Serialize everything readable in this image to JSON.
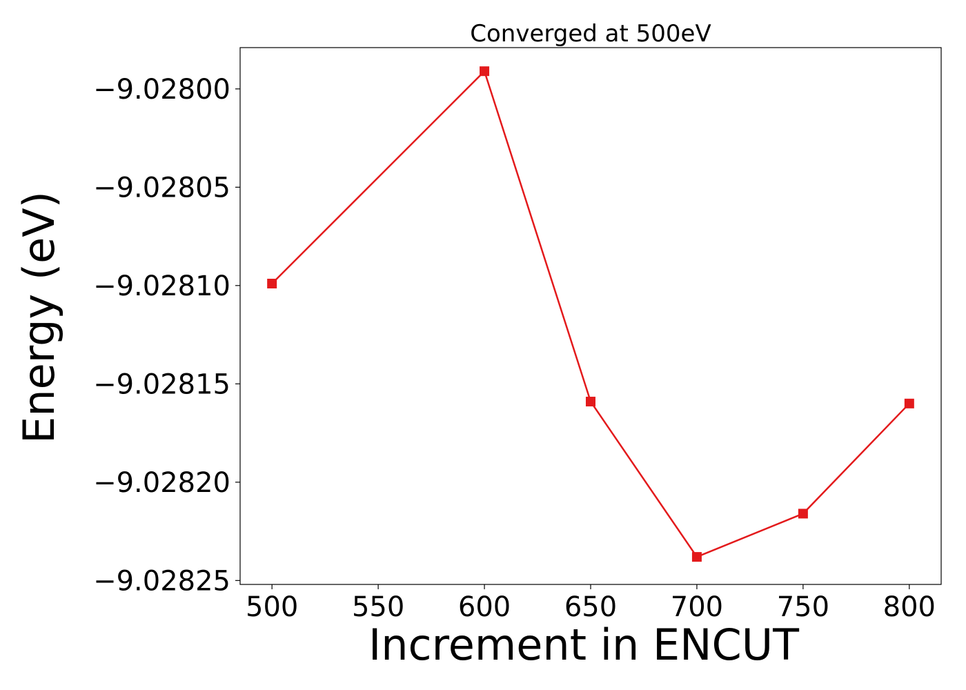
{
  "chart_data": {
    "type": "line",
    "title": "Converged at 500eV",
    "xlabel": "Increment in ENCUT",
    "ylabel": "Energy (eV)",
    "x": [
      500,
      600,
      650,
      700,
      750,
      800
    ],
    "series": [
      {
        "values": [
          -9.028099,
          -9.027991,
          -9.028159,
          -9.028238,
          -9.028216,
          -9.02816
        ],
        "color": "#e31a1c",
        "marker": "square"
      }
    ],
    "xlim": [
      485,
      815
    ],
    "ylim": [
      -9.028252,
      -9.027979
    ],
    "xticks": [
      500,
      550,
      600,
      650,
      700,
      750,
      800
    ],
    "xtick_labels": [
      "500",
      "550",
      "600",
      "650",
      "700",
      "750",
      "800"
    ],
    "yticks": [
      -9.028,
      -9.02805,
      -9.0281,
      -9.02815,
      -9.0282,
      -9.02825
    ],
    "ytick_labels": [
      "−9.02800",
      "−9.02805",
      "−9.02810",
      "−9.02815",
      "−9.02820",
      "−9.02825"
    ],
    "grid": false,
    "legend": false
  }
}
